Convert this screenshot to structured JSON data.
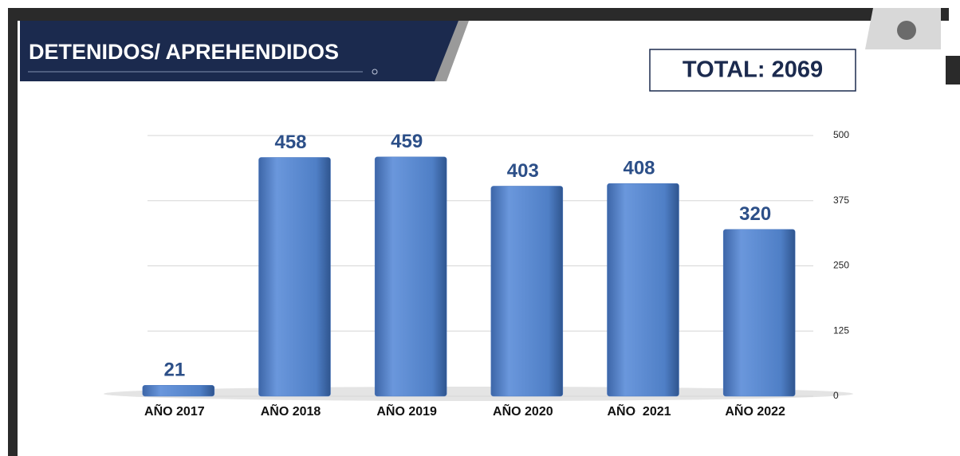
{
  "chart_data": {
    "type": "bar",
    "title": "DETENIDOS/ APREHENDIDOS",
    "total": "TOTAL: 2069",
    "categories": [
      "AÑO 2017",
      "AÑO 2018",
      "AÑO 2019",
      "AÑO 2020",
      "AÑO  2021",
      "AÑO 2022"
    ],
    "values": [
      21,
      458,
      459,
      403,
      408,
      320
    ],
    "color": "#4a78c0",
    "ylim": [
      0,
      500
    ],
    "yticks": [
      0,
      125,
      250,
      375,
      500
    ],
    "grid": true,
    "y_axis_side": "right"
  }
}
